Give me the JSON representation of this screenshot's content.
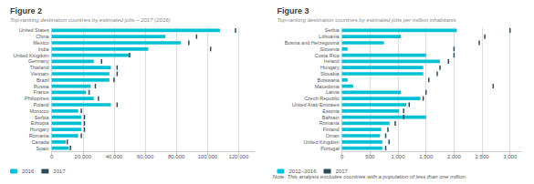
{
  "chart_data": [
    {
      "type": "bar",
      "orientation": "horizontal",
      "title": "Figure 2",
      "subtitle": "Top-ranking destination countries by estimated jobs – 2017 (2016)",
      "categories": [
        "United States",
        "China",
        "Mexico",
        "India",
        "United Kingdom",
        "Germany",
        "Thailand",
        "Vietnam",
        "Brazil",
        "Russia",
        "France",
        "Philippines",
        "Poland",
        "Morocco",
        "Serbia",
        "Ethiopia",
        "Hungary",
        "Romania",
        "Canada",
        "Spain"
      ],
      "series": [
        {
          "name": "2016",
          "type": "bar",
          "color": "#00c1d4",
          "values": [
            108000,
            73000,
            83000,
            62000,
            50000,
            27000,
            38000,
            37000,
            37000,
            25000,
            22000,
            27000,
            38000,
            17000,
            19000,
            19000,
            19000,
            17000,
            9000,
            11000
          ]
        },
        {
          "name": "2017",
          "type": "scatter",
          "marker": "line",
          "color": "#2d4a5a",
          "values": [
            118000,
            93000,
            88000,
            102000,
            50000,
            32000,
            42000,
            42000,
            40000,
            28000,
            24000,
            30000,
            42000,
            19000,
            21000,
            21000,
            21000,
            19000,
            10000,
            12000
          ]
        }
      ],
      "xlim": [
        0,
        130000
      ],
      "xticks": [
        0,
        {
          "value": 20000,
          "label": "20,000"
        },
        {
          "value": 40000,
          "label": "40,000"
        },
        {
          "value": 60000,
          "label": "60,000"
        },
        {
          "value": 80000,
          "label": "80,000"
        },
        {
          "value": 100000,
          "label": "100,000"
        },
        {
          "value": 120000,
          "label": "120,000"
        }
      ],
      "grid": true,
      "legend": "lower left"
    },
    {
      "type": "bar",
      "orientation": "horizontal",
      "title": "Figure 3",
      "subtitle": "Top-ranking destination countries by estimated jobs per million inhabitants",
      "categories": [
        "Serbia",
        "Lithuania",
        "Bosnia and Herzegovina",
        "Slovenia",
        "Costa Rica",
        "Ireland",
        "Hungary",
        "Slovakia",
        "Botswana",
        "Macedonia",
        "Latvia",
        "Czech Republic",
        "United Arab Emirates",
        "Estonia",
        "Bahrain",
        "Romania",
        "Finland",
        "Oman",
        "United Kingdom",
        "Portugal"
      ],
      "series": [
        {
          "name": "2012–2016",
          "type": "bar",
          "color": "#00c1d4",
          "values": [
            2050,
            1050,
            750,
            100,
            1500,
            1750,
            1450,
            1450,
            100,
            200,
            1050,
            1400,
            1150,
            1020,
            1500,
            850,
            700,
            680,
            720,
            720
          ]
        },
        {
          "name": "2017",
          "type": "scatter",
          "marker": "line",
          "color": "#2d4a5a",
          "values": [
            3000,
            2550,
            2450,
            2000,
            2000,
            1900,
            1750,
            1700,
            1550,
            2700,
            1500,
            1450,
            1200,
            1100,
            1100,
            950,
            820,
            780,
            840,
            780
          ]
        }
      ],
      "xlim": [
        0,
        3200
      ],
      "xticks": [
        0,
        500,
        {
          "value": 1000,
          "label": "1,000"
        },
        {
          "value": 1500,
          "label": "1,500"
        },
        {
          "value": 2000,
          "label": "2,000"
        },
        {
          "value": 2500,
          "label": "2,500"
        },
        {
          "value": 3000,
          "label": "3,000"
        }
      ],
      "grid": true,
      "legend": "lower left",
      "note": "Note: This analysis excludes countries with a population of less than one million."
    }
  ]
}
